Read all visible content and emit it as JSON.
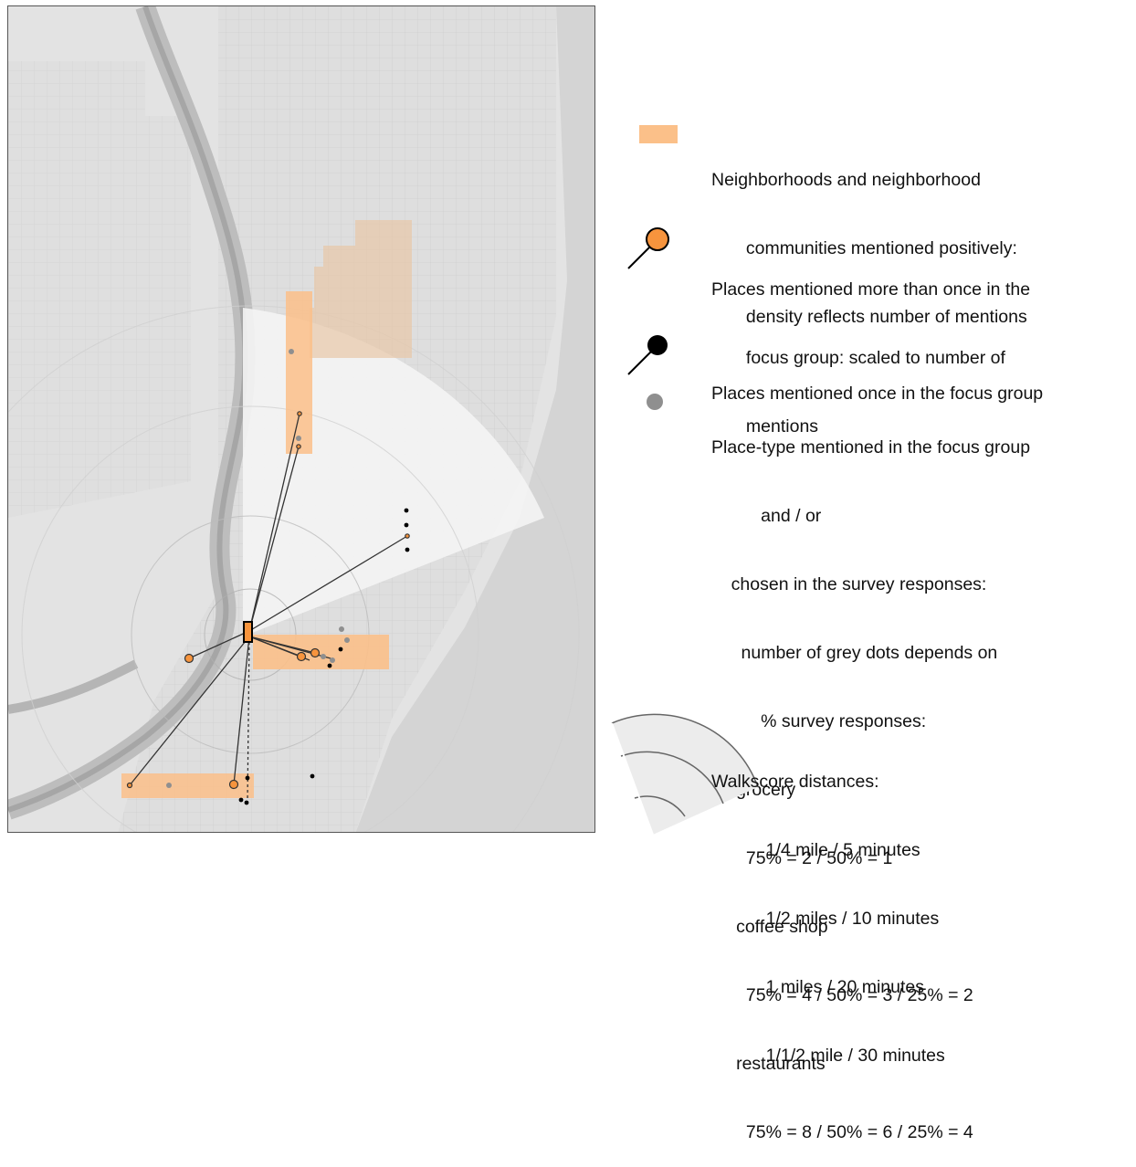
{
  "colors": {
    "neighborhood_fill": "#fbc089",
    "place_orange": "#f7943d",
    "place_black": "#000000",
    "place_grey": "#8f8f8f",
    "map_background": "#e6e6e6"
  },
  "map": {
    "icons": [
      "map-aerial-base",
      "walkscore-radius-rings"
    ]
  },
  "legend": {
    "neighborhoods": {
      "icon": "orange-rectangle-swatch",
      "lines": [
        "Neighborhoods and neighborhood",
        "       communities mentioned positively:",
        "       density reflects number of mentions"
      ]
    },
    "places_multi": {
      "icon": "orange-pin-icon",
      "lines": [
        "Places mentioned more than once in the",
        "       focus group: scaled to number of",
        "       mentions"
      ]
    },
    "places_once": {
      "icon": "black-pin-icon",
      "lines": [
        "Places mentioned once in the focus group"
      ]
    },
    "place_type": {
      "icon": "grey-dot-icon",
      "lines": [
        "Place-type mentioned in the focus group",
        "          and / or",
        "    chosen in the survey responses:",
        "      number of grey dots depends on",
        "          % survey responses:",
        "     grocery",
        "       75% = 2 / 50% = 1",
        "     coffee shop",
        "       75% = 4 / 50% = 3 / 25% = 2",
        "     restaurants",
        "       75% = 8 / 50% = 6 / 25% = 4"
      ]
    },
    "walkscore": {
      "icon": "walkscore-arcs-icon",
      "lines": [
        "Walkscore distances:",
        "           1/4 mile / 5 minutes",
        "           1/2 miles / 10 minutes",
        "           1 miles / 20 minutes",
        "           1/1/2 mile / 30 minutes"
      ]
    }
  }
}
